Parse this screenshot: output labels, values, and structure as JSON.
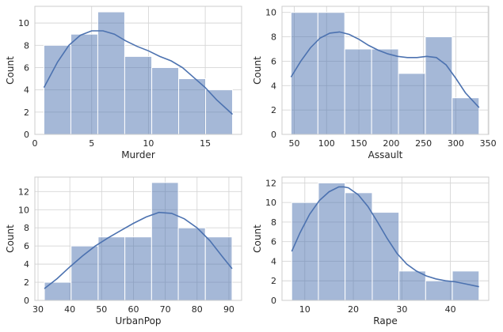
{
  "chart_data": [
    {
      "type": "bar",
      "subtype": "histogram-with-kde",
      "xlabel": "Murder",
      "ylabel": "Count",
      "xlim": [
        0,
        18.2
      ],
      "ylim": [
        0,
        11.5
      ],
      "xticks": [
        0,
        5,
        10,
        15
      ],
      "yticks": [
        0,
        2,
        4,
        6,
        8,
        10
      ],
      "bins": [
        {
          "start": 0.8,
          "end": 3.17,
          "count": 8
        },
        {
          "start": 3.17,
          "end": 5.54,
          "count": 9
        },
        {
          "start": 5.54,
          "end": 7.91,
          "count": 11
        },
        {
          "start": 7.91,
          "end": 10.29,
          "count": 7
        },
        {
          "start": 10.29,
          "end": 12.66,
          "count": 6
        },
        {
          "start": 12.66,
          "end": 15.03,
          "count": 5
        },
        {
          "start": 15.03,
          "end": 17.4,
          "count": 4
        }
      ],
      "kde": {
        "x": [
          0.8,
          2.0,
          3.0,
          4.0,
          5.0,
          6.0,
          7.0,
          8.0,
          9.0,
          10.0,
          11.0,
          12.0,
          13.0,
          14.0,
          15.0,
          16.0,
          17.4
        ],
        "y": [
          4.2,
          6.5,
          8.0,
          8.9,
          9.3,
          9.3,
          9.0,
          8.4,
          7.9,
          7.5,
          7.0,
          6.6,
          6.0,
          5.1,
          4.2,
          3.1,
          1.8
        ]
      },
      "grid": true
    },
    {
      "type": "bar",
      "subtype": "histogram-with-kde",
      "xlabel": "Assault",
      "ylabel": "Count",
      "xlim": [
        31,
        351
      ],
      "ylim": [
        0,
        10.5
      ],
      "xticks": [
        50,
        100,
        150,
        200,
        250,
        300,
        350
      ],
      "yticks": [
        0,
        2,
        4,
        6,
        8,
        10
      ],
      "bins": [
        {
          "start": 45,
          "end": 86.6,
          "count": 10
        },
        {
          "start": 86.6,
          "end": 128.1,
          "count": 10
        },
        {
          "start": 128.1,
          "end": 169.7,
          "count": 7
        },
        {
          "start": 169.7,
          "end": 211.3,
          "count": 7
        },
        {
          "start": 211.3,
          "end": 252.9,
          "count": 5
        },
        {
          "start": 252.9,
          "end": 294.4,
          "count": 8
        },
        {
          "start": 294.4,
          "end": 336,
          "count": 3
        }
      ],
      "kde": {
        "x": [
          45,
          60,
          75,
          90,
          105,
          120,
          135,
          150,
          165,
          180,
          195,
          210,
          225,
          240,
          255,
          270,
          285,
          300,
          315,
          336
        ],
        "y": [
          4.7,
          6.0,
          7.1,
          7.9,
          8.3,
          8.4,
          8.2,
          7.8,
          7.3,
          6.9,
          6.6,
          6.4,
          6.3,
          6.3,
          6.4,
          6.3,
          5.7,
          4.6,
          3.4,
          2.2
        ]
      },
      "grid": true
    },
    {
      "type": "bar",
      "subtype": "histogram-with-kde",
      "xlabel": "UrbanPop",
      "ylabel": "Count",
      "xlim": [
        29,
        94
      ],
      "ylim": [
        0,
        13.6
      ],
      "xticks": [
        30,
        40,
        50,
        60,
        70,
        80,
        90
      ],
      "yticks": [
        0,
        2,
        4,
        6,
        8,
        10,
        12
      ],
      "bins": [
        {
          "start": 32,
          "end": 40.4,
          "count": 2
        },
        {
          "start": 40.4,
          "end": 48.9,
          "count": 6
        },
        {
          "start": 48.9,
          "end": 57.3,
          "count": 7
        },
        {
          "start": 57.3,
          "end": 65.7,
          "count": 7
        },
        {
          "start": 65.7,
          "end": 74.1,
          "count": 13
        },
        {
          "start": 74.1,
          "end": 82.6,
          "count": 8
        },
        {
          "start": 82.6,
          "end": 91,
          "count": 7
        }
      ],
      "kde": {
        "x": [
          32,
          36,
          40,
          44,
          48,
          52,
          56,
          60,
          64,
          68,
          72,
          76,
          80,
          84,
          88,
          91
        ],
        "y": [
          1.3,
          2.4,
          3.7,
          4.9,
          6.0,
          6.9,
          7.7,
          8.5,
          9.2,
          9.7,
          9.6,
          9.0,
          8.0,
          6.6,
          4.8,
          3.5
        ]
      },
      "grid": true
    },
    {
      "type": "bar",
      "subtype": "histogram-with-kde",
      "xlabel": "Rape",
      "ylabel": "Count",
      "xlim": [
        5.3,
        47.9
      ],
      "ylim": [
        0,
        12.6
      ],
      "xticks": [
        10,
        20,
        30,
        40
      ],
      "yticks": [
        0,
        2,
        4,
        6,
        8,
        10,
        12
      ],
      "bins": [
        {
          "start": 7.3,
          "end": 12.8,
          "count": 10
        },
        {
          "start": 12.8,
          "end": 18.3,
          "count": 12
        },
        {
          "start": 18.3,
          "end": 23.9,
          "count": 11
        },
        {
          "start": 23.9,
          "end": 29.4,
          "count": 9
        },
        {
          "start": 29.4,
          "end": 34.9,
          "count": 3
        },
        {
          "start": 34.9,
          "end": 40.4,
          "count": 2
        },
        {
          "start": 40.4,
          "end": 45.9,
          "count": 3
        }
      ],
      "kde": {
        "x": [
          7.3,
          9,
          11,
          13,
          15,
          17,
          18,
          19,
          21,
          23,
          25,
          27,
          29,
          31,
          33,
          35,
          37,
          39,
          41,
          43,
          45.9
        ],
        "y": [
          5.0,
          6.9,
          8.8,
          10.2,
          11.1,
          11.6,
          11.6,
          11.5,
          10.8,
          9.6,
          8.0,
          6.3,
          4.8,
          3.7,
          3.0,
          2.5,
          2.2,
          2.0,
          1.9,
          1.7,
          1.4
        ]
      },
      "grid": true
    }
  ]
}
